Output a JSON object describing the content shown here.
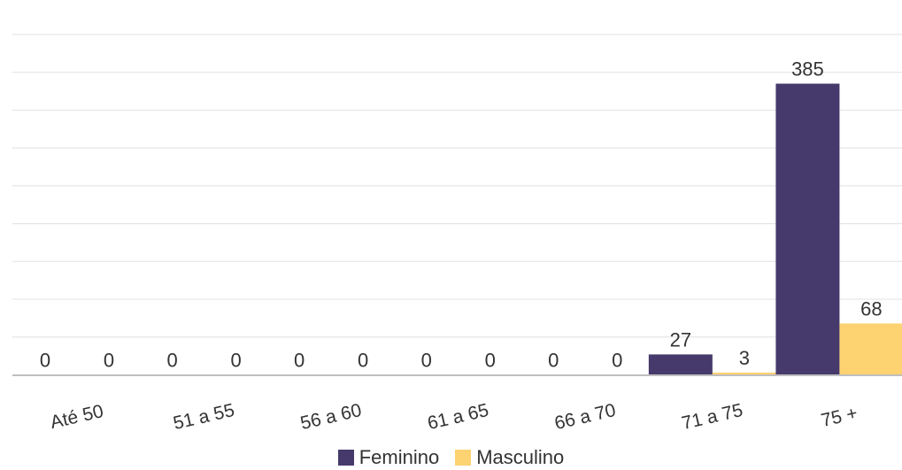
{
  "colors": {
    "feminino": "#463a6c",
    "masculino": "#fdd271",
    "grid": "#e6e6e6",
    "axis": "#bfbfbf",
    "text": "#333333"
  },
  "chart_data": {
    "type": "bar",
    "title": "",
    "xlabel": "",
    "ylabel": "",
    "categories": [
      "Até 50",
      "51 a 55",
      "56 a 60",
      "61 a 65",
      "66 a 70",
      "71 a 75",
      "75 +"
    ],
    "series": [
      {
        "name": "Feminino",
        "values": [
          0,
          0,
          0,
          0,
          0,
          27,
          385
        ]
      },
      {
        "name": "Masculino",
        "values": [
          0,
          0,
          0,
          0,
          0,
          3,
          68
        ]
      }
    ],
    "ylim": [
      0,
      450
    ],
    "grid": true,
    "legend": "bottom",
    "data_labels": true
  }
}
